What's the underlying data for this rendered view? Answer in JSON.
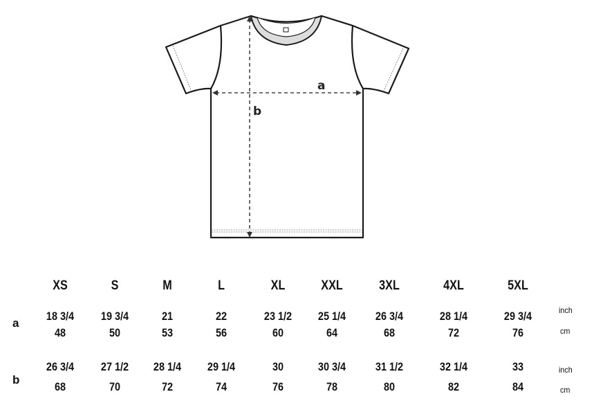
{
  "diagram": {
    "labels": {
      "width": "a",
      "length": "b"
    }
  },
  "table": {
    "sizes": [
      "XS",
      "S",
      "M",
      "L",
      "XL",
      "XXL",
      "3XL",
      "4XL",
      "5XL"
    ],
    "rows": [
      {
        "label": "a",
        "inch": [
          "18 3/4",
          "19 3/4",
          "21",
          "22",
          "23 1/2",
          "25 1/4",
          "26 3/4",
          "28 1/4",
          "29 3/4"
        ],
        "cm": [
          "48",
          "50",
          "53",
          "56",
          "60",
          "64",
          "68",
          "72",
          "76"
        ],
        "inch_unit": "inch",
        "cm_unit": "cm"
      },
      {
        "label": "b",
        "inch": [
          "26 3/4",
          "27 1/2",
          "28 1/4",
          "29 1/4",
          "30",
          "30 3/4",
          "31 1/2",
          "32 1/4",
          "33"
        ],
        "cm": [
          "68",
          "70",
          "72",
          "74",
          "76",
          "78",
          "80",
          "82",
          "84"
        ],
        "inch_unit": "inch",
        "cm_unit": "cm"
      }
    ]
  }
}
